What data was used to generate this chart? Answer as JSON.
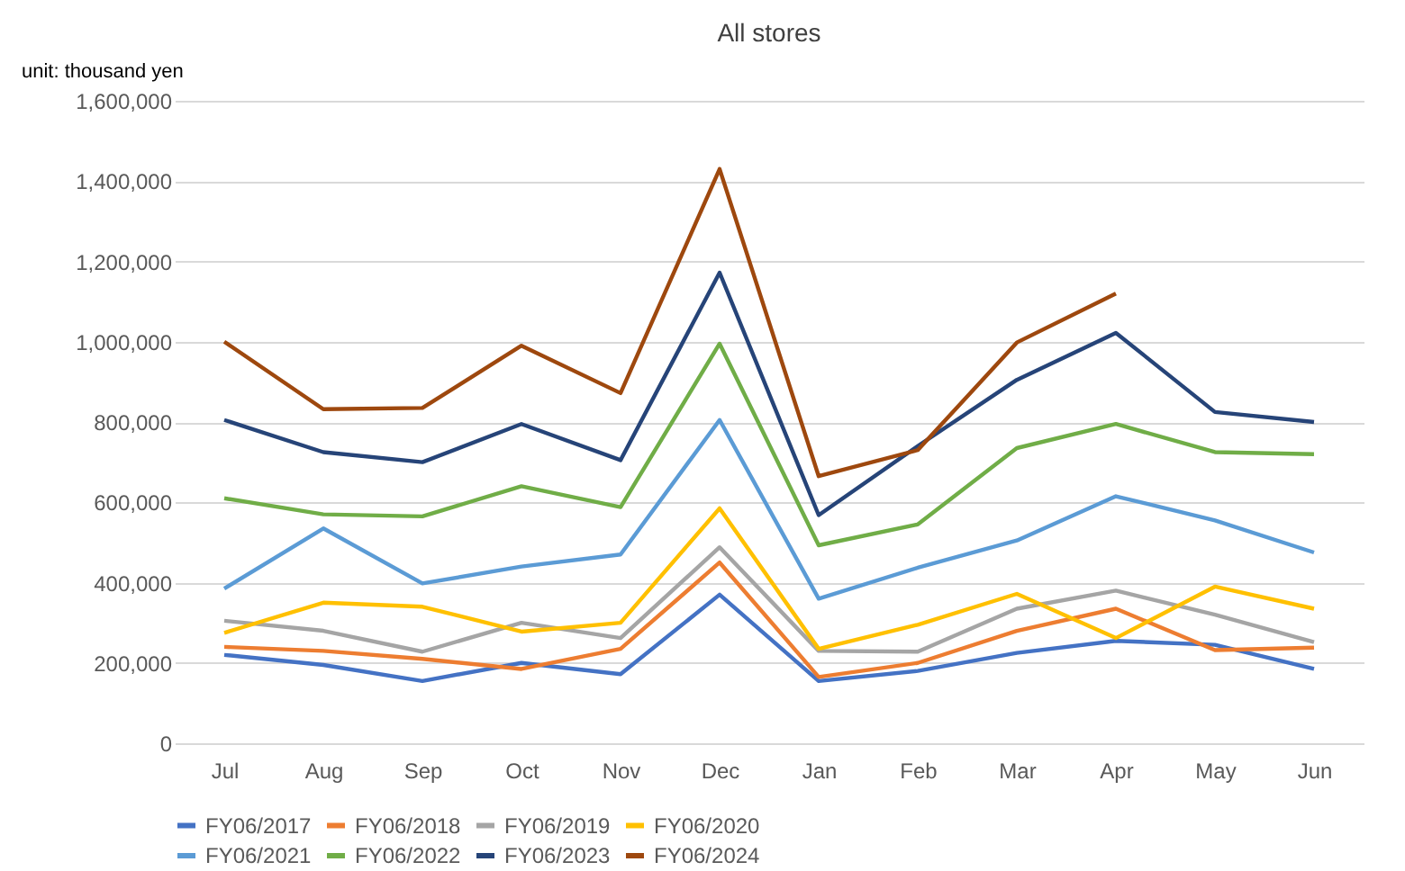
{
  "chart_data": {
    "type": "line",
    "title": "All stores",
    "annotations": [
      "unit: thousand yen"
    ],
    "categories": [
      "Jul",
      "Aug",
      "Sep",
      "Oct",
      "Nov",
      "Dec",
      "Jan",
      "Feb",
      "Mar",
      "Apr",
      "May",
      "Jun"
    ],
    "ylim": [
      0,
      1600000
    ],
    "yticks": [
      {
        "value": 0,
        "label": "0"
      },
      {
        "value": 200000,
        "label": "200,000"
      },
      {
        "value": 400000,
        "label": "400,000"
      },
      {
        "value": 600000,
        "label": "600,000"
      },
      {
        "value": 800000,
        "label": "800,000"
      },
      {
        "value": 1000000,
        "label": "1,000,000"
      },
      {
        "value": 1200000,
        "label": "1,200,000"
      },
      {
        "value": 1400000,
        "label": "1,400,000"
      },
      {
        "value": 1600000,
        "label": "1,600,000"
      }
    ],
    "grid": "y",
    "legend": "bottom",
    "marker": "none",
    "line_style": "solid",
    "series": [
      {
        "name": "FY06/2017",
        "color": "#4472c4",
        "values": [
          220000,
          195000,
          155000,
          200000,
          172000,
          370000,
          155000,
          180000,
          225000,
          255000,
          245000,
          185000
        ]
      },
      {
        "name": "FY06/2018",
        "color": "#ed7d31",
        "values": [
          240000,
          230000,
          210000,
          185000,
          235000,
          450000,
          165000,
          200000,
          280000,
          335000,
          232000,
          238000
        ]
      },
      {
        "name": "FY06/2019",
        "color": "#a5a5a5",
        "values": [
          305000,
          280000,
          228000,
          300000,
          262000,
          488000,
          230000,
          228000,
          335000,
          380000,
          320000,
          252000
        ]
      },
      {
        "name": "FY06/2020",
        "color": "#ffc000",
        "values": [
          275000,
          350000,
          340000,
          278000,
          300000,
          585000,
          235000,
          295000,
          372000,
          262000,
          390000,
          335000
        ]
      },
      {
        "name": "FY06/2021",
        "color": "#5b9bd5",
        "values": [
          385000,
          535000,
          398000,
          440000,
          470000,
          805000,
          360000,
          437000,
          505000,
          615000,
          555000,
          475000
        ]
      },
      {
        "name": "FY06/2022",
        "color": "#70ad47",
        "values": [
          610000,
          570000,
          565000,
          640000,
          588000,
          995000,
          493000,
          545000,
          735000,
          795000,
          725000,
          720000
        ]
      },
      {
        "name": "FY06/2023",
        "color": "#264478",
        "values": [
          805000,
          725000,
          700000,
          795000,
          705000,
          1172000,
          568000,
          740000,
          905000,
          1022000,
          825000,
          800000
        ]
      },
      {
        "name": "FY06/2024",
        "color": "#9e480e",
        "values": [
          1000000,
          832000,
          835000,
          990000,
          872000,
          1430000,
          665000,
          730000,
          998000,
          1120000,
          null,
          null
        ]
      }
    ]
  }
}
